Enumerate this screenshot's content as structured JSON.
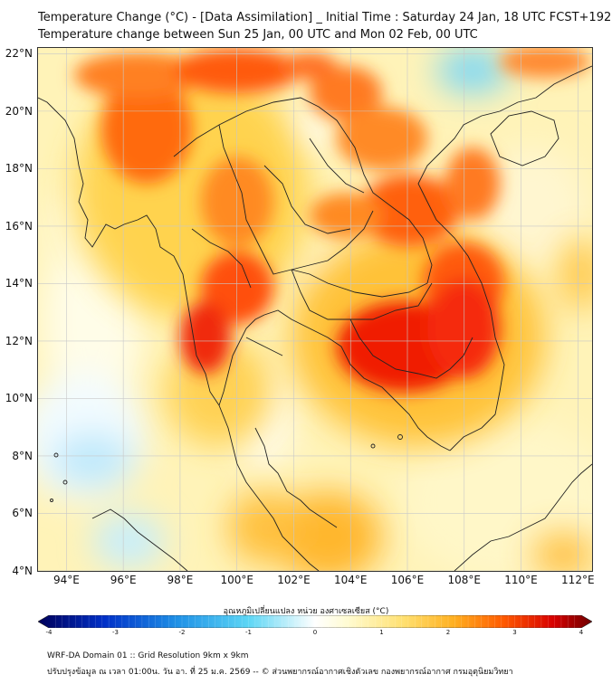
{
  "header": {
    "title_line1": "Temperature Change (°C) - [Data Assimilation] _ Initial Time : Saturday 24 Jan, 18 UTC FCST+192",
    "title_line2": "Temperature change between Sun 25 Jan, 00 UTC and Mon 02 Feb, 00 UTC"
  },
  "map": {
    "lat_labels": [
      "22°N",
      "20°N",
      "18°N",
      "16°N",
      "14°N",
      "12°N",
      "10°N",
      "8°N",
      "6°N",
      "4°N"
    ],
    "lon_labels": [
      "94°E",
      "96°E",
      "98°E",
      "100°E",
      "102°E",
      "104°E",
      "106°E",
      "108°E",
      "110°E",
      "112°E"
    ],
    "lat_range": [
      4,
      22.2
    ],
    "lon_range": [
      93,
      112.5
    ],
    "colors": {
      "land_border": "#222222",
      "grid": "#c8c8c8"
    }
  },
  "colorbar": {
    "title": "อุณหภูมิเปลี่ยนแปลง หน่วย องศาเซลเซียส (°C)",
    "ticks": [
      "-4",
      "-3",
      "-2",
      "-1",
      "0",
      "1",
      "2",
      "3",
      "4"
    ],
    "range": [
      -4,
      4
    ],
    "colors": [
      "#00005a",
      "#0020c0",
      "#1e7be0",
      "#3cc8f0",
      "#b4ecfa",
      "#ffffff",
      "#fffbcc",
      "#ffe066",
      "#ffa500",
      "#ff4500",
      "#d00000",
      "#7a0000"
    ]
  },
  "footer": {
    "line1": "WRF-DA Domain 01 :: Grid Resolution 9km x 9km",
    "line2": "ปรับปรุงข้อมูล ณ เวลา 01:00น. วัน อา. ที่ 25 ม.ค. 2569 -- © ส่วนพยากรณ์อากาศเชิงตัวเลข กองพยากรณ์อากาศ กรมอุตุนิยมวิทยา"
  }
}
